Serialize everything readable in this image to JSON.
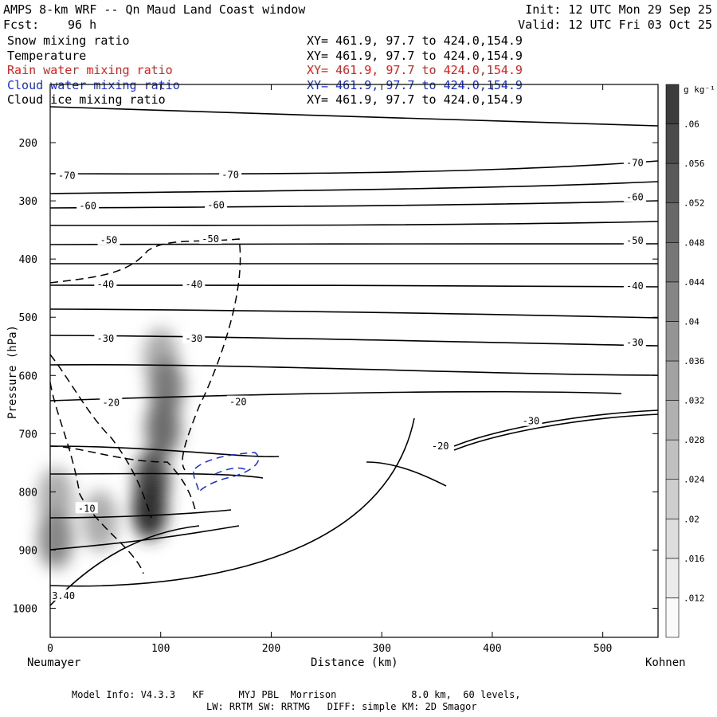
{
  "header": {
    "title": "AMPS 8-km WRF -- Qn Maud Land Coast window",
    "fcst_label": "Fcst:",
    "fcst_value": "96 h",
    "init": "Init: 12 UTC Mon 29 Sep 25",
    "valid": "Valid: 12 UTC Fri 03 Oct 25"
  },
  "variables": [
    {
      "name": "Snow mixing ratio",
      "xy": "XY= 461.9, 97.7 to 424.0,154.9",
      "color": "#000000"
    },
    {
      "name": "Temperature",
      "xy": "XY= 461.9, 97.7 to 424.0,154.9",
      "color": "#000000"
    },
    {
      "name": "Rain water mixing ratio",
      "xy": "XY= 461.9, 97.7 to 424.0,154.9",
      "color": "#e0201e"
    },
    {
      "name": "Cloud water mixing ratio",
      "xy": "XY= 461.9, 97.7 to 424.0,154.9",
      "color": "#1a2fd0"
    },
    {
      "name": "Cloud ice mixing ratio",
      "xy": "XY= 461.9, 97.7 to 424.0,154.9",
      "color": "#000000"
    }
  ],
  "footer": {
    "line1": "Model Info: V4.3.3   KF      MYJ PBL  Morrison             8.0 km,  60 levels,",
    "line2": "LW: RRTM SW: RRTMG   DIFF: simple KM: 2D Smagor"
  },
  "chart_data": {
    "type": "heatmap",
    "title": "",
    "xlabel": "Distance (km)",
    "ylabel": "Pressure (hPa)",
    "xlim": [
      0,
      550
    ],
    "ylim": [
      1050,
      100
    ],
    "x_ticks": [
      0,
      100,
      200,
      300,
      400,
      500
    ],
    "y_ticks": [
      200,
      300,
      400,
      500,
      600,
      700,
      800,
      900,
      1000
    ],
    "start_label": "Neumayer",
    "end_label": "Kohnen",
    "colorbar": {
      "unit": "g kg⁻¹",
      "levels": [
        ".012",
        ".016",
        ".02",
        ".024",
        ".028",
        ".032",
        ".036",
        ".04",
        ".044",
        ".048",
        ".052",
        ".056",
        ".06"
      ]
    },
    "shading_snow": [
      {
        "x": 100,
        "y": 570,
        "value": 0.02
      },
      {
        "x": 105,
        "y": 620,
        "value": 0.036
      },
      {
        "x": 102,
        "y": 690,
        "value": 0.04
      },
      {
        "x": 92,
        "y": 780,
        "value": 0.052
      },
      {
        "x": 90,
        "y": 830,
        "value": 0.06
      },
      {
        "x": 5,
        "y": 810,
        "value": 0.02
      },
      {
        "x": 5,
        "y": 880,
        "value": 0.032
      },
      {
        "x": 45,
        "y": 850,
        "value": 0.02
      }
    ],
    "temperature_labels": [
      {
        "text": "-70",
        "x": 15,
        "y": 258
      },
      {
        "text": "-70",
        "x": 163,
        "y": 257
      },
      {
        "text": "-70",
        "x": 529,
        "y": 236
      },
      {
        "text": "-60",
        "x": 34,
        "y": 310
      },
      {
        "text": "-60",
        "x": 150,
        "y": 309
      },
      {
        "text": "-60",
        "x": 529,
        "y": 295
      },
      {
        "text": "-50",
        "x": 53,
        "y": 369
      },
      {
        "text": "-50",
        "x": 145,
        "y": 367
      },
      {
        "text": "-50",
        "x": 529,
        "y": 370
      },
      {
        "text": "-40",
        "x": 50,
        "y": 445
      },
      {
        "text": "-40",
        "x": 130,
        "y": 445
      },
      {
        "text": "-40",
        "x": 529,
        "y": 448
      },
      {
        "text": "-30",
        "x": 50,
        "y": 538
      },
      {
        "text": "-30",
        "x": 130,
        "y": 538
      },
      {
        "text": "-30",
        "x": 529,
        "y": 545
      },
      {
        "text": "-30",
        "x": 435,
        "y": 680
      },
      {
        "text": "-20",
        "x": 55,
        "y": 648
      },
      {
        "text": "-20",
        "x": 170,
        "y": 647
      },
      {
        "text": "-20",
        "x": 353,
        "y": 723
      },
      {
        "text": "-10",
        "x": 33,
        "y": 830
      },
      {
        "text": "3.40",
        "x": 12,
        "y": 980
      }
    ]
  }
}
